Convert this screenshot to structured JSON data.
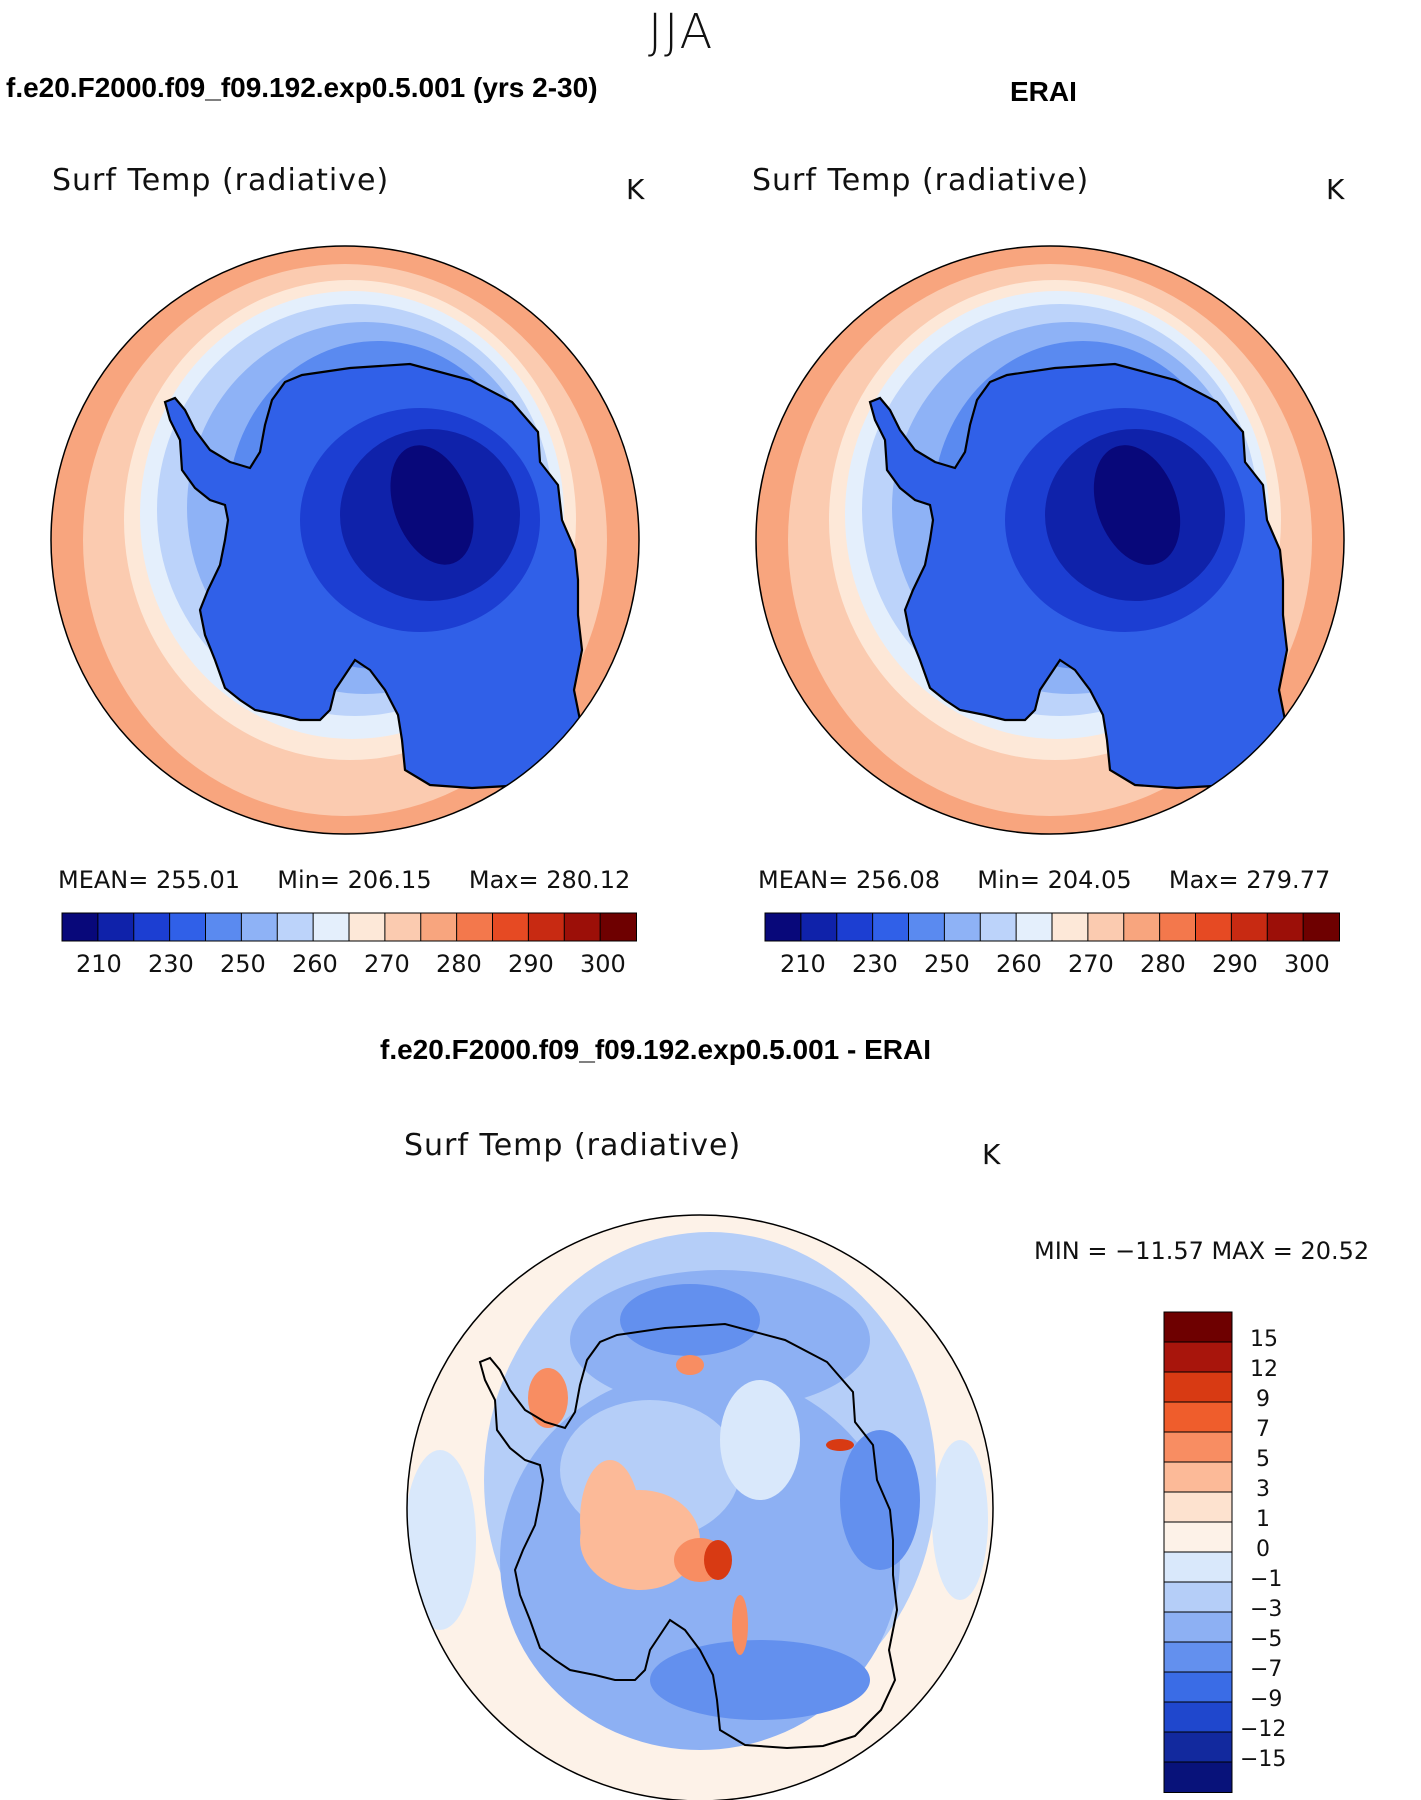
{
  "page": {
    "season": "JJA"
  },
  "panels": [
    {
      "header": "f.e20.F2000.f09_f09.192.exp0.5.001 (yrs 2-30)",
      "variable": "Surf Temp (radiative)",
      "units": "K",
      "stats": {
        "mean_label": "MEAN=",
        "mean": "255.01",
        "min_label": "Min=",
        "min": "206.15",
        "max_label": "Max=",
        "max": "280.12"
      },
      "colorbar_ticks": [
        "210",
        "230",
        "250",
        "260",
        "270",
        "280",
        "290",
        "300"
      ]
    },
    {
      "header": "ERAI",
      "variable": "Surf Temp (radiative)",
      "units": "K",
      "stats": {
        "mean_label": "MEAN=",
        "mean": "256.08",
        "min_label": "Min=",
        "min": "204.05",
        "max_label": "Max=",
        "max": "279.77"
      },
      "colorbar_ticks": [
        "210",
        "230",
        "250",
        "260",
        "270",
        "280",
        "290",
        "300"
      ]
    }
  ],
  "diff": {
    "header": "f.e20.F2000.f09_f09.192.exp0.5.001 - ERAI",
    "variable": "Surf Temp (radiative)",
    "units": "K",
    "minmax_text": "MIN = −11.57 MAX =   20.52",
    "colorbar_labels": [
      "15",
      "12",
      "9",
      "7",
      "5",
      "3",
      "1",
      "0",
      "−1",
      "−3",
      "−5",
      "−7",
      "−9",
      "−12",
      "−15"
    ]
  },
  "colors": {
    "abs_scale": [
      "#08087a",
      "#0f22aa",
      "#1c3ed2",
      "#3060e8",
      "#5a8af0",
      "#8eb2f6",
      "#bcd3fa",
      "#e4effc",
      "#fde8d8",
      "#fbcbb0",
      "#f8a57e",
      "#f3784c",
      "#e64a23",
      "#c82a12",
      "#9c0f08",
      "#6e0000"
    ],
    "diff_scale": [
      "#6e0000",
      "#a8150c",
      "#d83a13",
      "#ef5d2c",
      "#f88d62",
      "#fcba98",
      "#fde2cf",
      "#fdf2e8",
      "#d9e8fb",
      "#b5cef8",
      "#8db0f3",
      "#6390ee",
      "#3a6ce6",
      "#1f47cd",
      "#12299e",
      "#08127a"
    ],
    "coast": "#000000"
  }
}
